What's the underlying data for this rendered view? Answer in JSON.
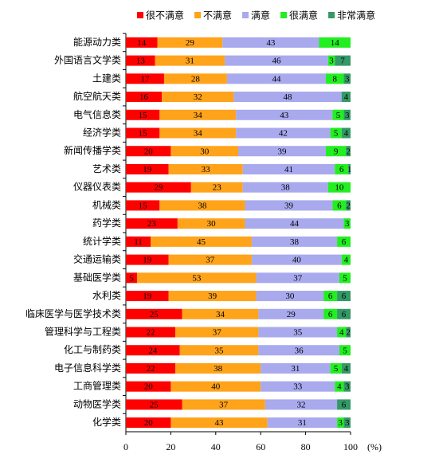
{
  "chart_data": {
    "type": "stacked-bar-horizontal",
    "categories": [
      "能源动力类",
      "外国语言文学类",
      "土建类",
      "航空航天类",
      "电气信息类",
      "经济学类",
      "新闻传播学类",
      "艺术类",
      "仪器仪表类",
      "机械类",
      "药学类",
      "统计学类",
      "交通运输类",
      "基础医学类",
      "水利类",
      "临床医学与医学技术类",
      "管理科学与工程类",
      "化工与制药类",
      "电子信息科学类",
      "工商管理类",
      "动物医学类",
      "化学类"
    ],
    "series": [
      {
        "name": "很不满意",
        "color": "#ff0000",
        "values": [
          14,
          13,
          17,
          16,
          15,
          15,
          20,
          19,
          29,
          15,
          23,
          11,
          19,
          5,
          19,
          25,
          22,
          24,
          22,
          20,
          25,
          20
        ]
      },
      {
        "name": "不满意",
        "color": "#ffa31a",
        "values": [
          29,
          31,
          28,
          32,
          34,
          34,
          30,
          33,
          23,
          38,
          30,
          45,
          37,
          53,
          39,
          34,
          37,
          35,
          38,
          40,
          37,
          43
        ]
      },
      {
        "name": "满意",
        "color": "#a9a9ee",
        "values": [
          43,
          46,
          44,
          48,
          43,
          42,
          39,
          41,
          38,
          39,
          44,
          38,
          40,
          37,
          30,
          29,
          35,
          36,
          31,
          33,
          32,
          31
        ]
      },
      {
        "name": "很满意",
        "color": "#22ee22",
        "values": [
          14,
          3,
          8,
          null,
          5,
          5,
          9,
          6,
          10,
          6,
          3,
          6,
          4,
          5,
          6,
          6,
          4,
          5,
          5,
          4,
          null,
          3
        ]
      },
      {
        "name": "非常满意",
        "color": "#339966",
        "values": [
          null,
          7,
          3,
          4,
          3,
          4,
          2,
          1,
          null,
          2,
          null,
          null,
          null,
          null,
          6,
          6,
          2,
          null,
          4,
          3,
          6,
          3
        ]
      }
    ],
    "xlim": [
      0,
      100
    ],
    "xticks": [
      0,
      20,
      40,
      60,
      80,
      100
    ],
    "xlabel": "(%)",
    "legend": "top"
  }
}
